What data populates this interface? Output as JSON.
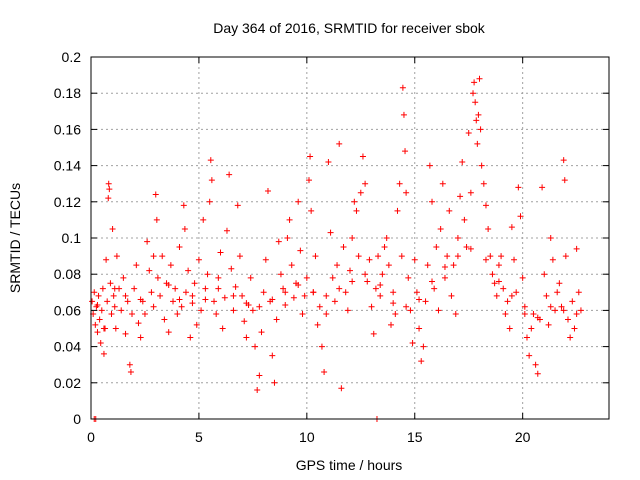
{
  "chart_data": {
    "type": "scatter",
    "title": "Day 364 of 2016, SRMTID for receiver sbok",
    "xlabel": "GPS time / hours",
    "ylabel": "SRMTID / TECUs",
    "xlim": [
      0,
      24
    ],
    "ylim": [
      0,
      0.2
    ],
    "x_ticks": [
      0,
      5,
      10,
      15,
      20
    ],
    "x_tick_labels": [
      "0",
      "5",
      "10",
      "15",
      "20"
    ],
    "y_ticks": [
      0,
      0.02,
      0.04,
      0.06,
      0.08,
      0.1,
      0.12,
      0.14,
      0.16,
      0.18,
      0.2
    ],
    "y_tick_labels": [
      "0",
      "0.02",
      "0.04",
      "0.06",
      "0.08",
      "0.1",
      "0.12",
      "0.14",
      "0.16",
      "0.18",
      "0.2"
    ],
    "grid": true,
    "marker": "+",
    "series_color": "#ff0000",
    "series": [
      {
        "name": "SRMTID",
        "points": [
          [
            0.05,
            0.065
          ],
          [
            0.1,
            0.058
          ],
          [
            0.15,
            0.07
          ],
          [
            0.2,
            0.052
          ],
          [
            0.25,
            0.062
          ],
          [
            0.3,
            0.048
          ],
          [
            0.35,
            0.068
          ],
          [
            0.4,
            0.055
          ],
          [
            0.45,
            0.042
          ],
          [
            0.5,
            0.06
          ],
          [
            0.55,
            0.072
          ],
          [
            0.6,
            0.036
          ],
          [
            0.65,
            0.05
          ],
          [
            0.7,
            0.088
          ],
          [
            0.75,
            0.065
          ],
          [
            0.8,
            0.122
          ],
          [
            0.82,
            0.13
          ],
          [
            0.85,
            0.127
          ],
          [
            0.9,
            0.075
          ],
          [
            0.95,
            0.058
          ],
          [
            1.0,
            0.105
          ],
          [
            1.05,
            0.068
          ],
          [
            1.1,
            0.062
          ],
          [
            1.15,
            0.05
          ],
          [
            1.2,
            0.09
          ],
          [
            1.3,
            0.072
          ],
          [
            1.4,
            0.06
          ],
          [
            1.5,
            0.078
          ],
          [
            1.6,
            0.047
          ],
          [
            1.7,
            0.065
          ],
          [
            1.8,
            0.03
          ],
          [
            1.85,
            0.026
          ],
          [
            1.9,
            0.058
          ],
          [
            2.0,
            0.072
          ],
          [
            2.1,
            0.085
          ],
          [
            2.2,
            0.053
          ],
          [
            2.3,
            0.045
          ],
          [
            2.4,
            0.065
          ],
          [
            2.5,
            0.058
          ],
          [
            2.6,
            0.098
          ],
          [
            2.7,
            0.082
          ],
          [
            2.8,
            0.07
          ],
          [
            2.9,
            0.09
          ],
          [
            3.0,
            0.124
          ],
          [
            3.05,
            0.11
          ],
          [
            3.1,
            0.078
          ],
          [
            3.2,
            0.068
          ],
          [
            3.3,
            0.09
          ],
          [
            3.4,
            0.055
          ],
          [
            3.5,
            0.075
          ],
          [
            3.6,
            0.048
          ],
          [
            3.7,
            0.085
          ],
          [
            3.8,
            0.065
          ],
          [
            3.9,
            0.072
          ],
          [
            4.0,
            0.058
          ],
          [
            4.1,
            0.095
          ],
          [
            4.2,
            0.062
          ],
          [
            4.3,
            0.118
          ],
          [
            4.35,
            0.105
          ],
          [
            4.4,
            0.07
          ],
          [
            4.5,
            0.082
          ],
          [
            4.6,
            0.045
          ],
          [
            4.7,
            0.068
          ],
          [
            4.8,
            0.075
          ],
          [
            4.9,
            0.052
          ],
          [
            5.0,
            0.088
          ],
          [
            5.1,
            0.06
          ],
          [
            5.2,
            0.11
          ],
          [
            5.3,
            0.072
          ],
          [
            5.4,
            0.08
          ],
          [
            5.5,
            0.12
          ],
          [
            5.55,
            0.143
          ],
          [
            5.6,
            0.132
          ],
          [
            5.7,
            0.065
          ],
          [
            5.8,
            0.058
          ],
          [
            5.9,
            0.078
          ],
          [
            6.0,
            0.092
          ],
          [
            6.1,
            0.05
          ],
          [
            6.2,
            0.067
          ],
          [
            6.3,
            0.104
          ],
          [
            6.4,
            0.135
          ],
          [
            6.5,
            0.083
          ],
          [
            6.6,
            0.06
          ],
          [
            6.7,
            0.073
          ],
          [
            6.8,
            0.118
          ],
          [
            6.9,
            0.09
          ],
          [
            7.0,
            0.068
          ],
          [
            7.1,
            0.054
          ],
          [
            7.2,
            0.045
          ],
          [
            7.3,
            0.063
          ],
          [
            7.4,
            0.078
          ],
          [
            7.5,
            0.06
          ],
          [
            7.6,
            0.04
          ],
          [
            7.7,
            0.016
          ],
          [
            7.8,
            0.024
          ],
          [
            7.9,
            0.048
          ],
          [
            8.0,
            0.07
          ],
          [
            8.1,
            0.088
          ],
          [
            8.2,
            0.126
          ],
          [
            8.3,
            0.065
          ],
          [
            8.4,
            0.035
          ],
          [
            8.5,
            0.02
          ],
          [
            8.6,
            0.055
          ],
          [
            8.7,
            0.098
          ],
          [
            8.8,
            0.08
          ],
          [
            8.9,
            0.072
          ],
          [
            9.0,
            0.063
          ],
          [
            9.1,
            0.1
          ],
          [
            9.2,
            0.11
          ],
          [
            9.3,
            0.085
          ],
          [
            9.4,
            0.067
          ],
          [
            9.5,
            0.075
          ],
          [
            9.6,
            0.12
          ],
          [
            9.7,
            0.093
          ],
          [
            9.8,
            0.058
          ],
          [
            9.9,
            0.068
          ],
          [
            10.0,
            0.078
          ],
          [
            10.1,
            0.132
          ],
          [
            10.15,
            0.145
          ],
          [
            10.2,
            0.115
          ],
          [
            10.3,
            0.07
          ],
          [
            10.4,
            0.09
          ],
          [
            10.5,
            0.052
          ],
          [
            10.6,
            0.062
          ],
          [
            10.7,
            0.04
          ],
          [
            10.8,
            0.026
          ],
          [
            10.9,
            0.058
          ],
          [
            11.0,
            0.142
          ],
          [
            11.1,
            0.103
          ],
          [
            11.2,
            0.078
          ],
          [
            11.3,
            0.065
          ],
          [
            11.4,
            0.085
          ],
          [
            11.5,
            0.152
          ],
          [
            11.6,
            0.017
          ],
          [
            11.7,
            0.095
          ],
          [
            11.8,
            0.07
          ],
          [
            11.9,
            0.06
          ],
          [
            12.0,
            0.082
          ],
          [
            12.1,
            0.1
          ],
          [
            12.2,
            0.12
          ],
          [
            12.3,
            0.115
          ],
          [
            12.4,
            0.09
          ],
          [
            12.5,
            0.125
          ],
          [
            12.6,
            0.145
          ],
          [
            12.7,
            0.13
          ],
          [
            12.8,
            0.076
          ],
          [
            12.9,
            0.088
          ],
          [
            13.0,
            0.062
          ],
          [
            13.1,
            0.047
          ],
          [
            13.2,
            0.072
          ],
          [
            13.3,
            0.09
          ],
          [
            13.4,
            0.068
          ],
          [
            13.5,
            0.08
          ],
          [
            13.6,
            0.095
          ],
          [
            13.7,
            0.1
          ],
          [
            13.8,
            0.085
          ],
          [
            13.9,
            0.052
          ],
          [
            14.0,
            0.07
          ],
          [
            14.1,
            0.058
          ],
          [
            14.2,
            0.115
          ],
          [
            14.3,
            0.13
          ],
          [
            14.4,
            0.09
          ],
          [
            14.45,
            0.183
          ],
          [
            14.5,
            0.168
          ],
          [
            14.55,
            0.148
          ],
          [
            14.6,
            0.125
          ],
          [
            14.7,
            0.078
          ],
          [
            14.8,
            0.06
          ],
          [
            14.9,
            0.042
          ],
          [
            15.0,
            0.088
          ],
          [
            15.1,
            0.07
          ],
          [
            15.2,
            0.05
          ],
          [
            15.3,
            0.032
          ],
          [
            15.4,
            0.04
          ],
          [
            15.5,
            0.065
          ],
          [
            15.6,
            0.085
          ],
          [
            15.7,
            0.14
          ],
          [
            15.8,
            0.12
          ],
          [
            15.9,
            0.072
          ],
          [
            16.0,
            0.095
          ],
          [
            16.1,
            0.06
          ],
          [
            16.2,
            0.105
          ],
          [
            16.3,
            0.13
          ],
          [
            16.4,
            0.078
          ],
          [
            16.5,
            0.09
          ],
          [
            16.6,
            0.115
          ],
          [
            16.7,
            0.068
          ],
          [
            16.8,
            0.085
          ],
          [
            16.9,
            0.058
          ],
          [
            17.0,
            0.1
          ],
          [
            17.1,
            0.123
          ],
          [
            17.2,
            0.142
          ],
          [
            17.3,
            0.11
          ],
          [
            17.4,
            0.095
          ],
          [
            17.5,
            0.158
          ],
          [
            17.6,
            0.125
          ],
          [
            17.7,
            0.18
          ],
          [
            17.75,
            0.186
          ],
          [
            17.8,
            0.175
          ],
          [
            17.85,
            0.165
          ],
          [
            17.9,
            0.152
          ],
          [
            17.95,
            0.168
          ],
          [
            18.0,
            0.188
          ],
          [
            18.05,
            0.16
          ],
          [
            18.1,
            0.14
          ],
          [
            18.2,
            0.13
          ],
          [
            18.3,
            0.118
          ],
          [
            18.4,
            0.105
          ],
          [
            18.5,
            0.09
          ],
          [
            18.6,
            0.08
          ],
          [
            18.7,
            0.075
          ],
          [
            18.8,
            0.068
          ],
          [
            18.9,
            0.085
          ],
          [
            19.0,
            0.09
          ],
          [
            19.1,
            0.072
          ],
          [
            19.2,
            0.058
          ],
          [
            19.3,
            0.065
          ],
          [
            19.4,
            0.05
          ],
          [
            19.5,
            0.106
          ],
          [
            19.6,
            0.088
          ],
          [
            19.7,
            0.07
          ],
          [
            19.8,
            0.128
          ],
          [
            19.9,
            0.112
          ],
          [
            20.0,
            0.078
          ],
          [
            20.1,
            0.062
          ],
          [
            20.2,
            0.045
          ],
          [
            20.3,
            0.035
          ],
          [
            20.4,
            0.05
          ],
          [
            20.5,
            0.058
          ],
          [
            20.6,
            0.03
          ],
          [
            20.7,
            0.025
          ],
          [
            20.8,
            0.055
          ],
          [
            20.9,
            0.128
          ],
          [
            21.0,
            0.08
          ],
          [
            21.1,
            0.068
          ],
          [
            21.2,
            0.052
          ],
          [
            21.3,
            0.1
          ],
          [
            21.4,
            0.088
          ],
          [
            21.5,
            0.06
          ],
          [
            21.6,
            0.07
          ],
          [
            21.7,
            0.075
          ],
          [
            21.8,
            0.062
          ],
          [
            21.9,
            0.143
          ],
          [
            21.95,
            0.132
          ],
          [
            22.0,
            0.09
          ],
          [
            22.1,
            0.055
          ],
          [
            22.2,
            0.045
          ],
          [
            22.3,
            0.065
          ],
          [
            22.4,
            0.05
          ],
          [
            22.5,
            0.094
          ],
          [
            22.6,
            0.07
          ],
          [
            22.7,
            0.06
          ],
          [
            0.3,
            0.063
          ],
          [
            0.6,
            0.05
          ],
          [
            1.1,
            0.072
          ],
          [
            1.6,
            0.068
          ],
          [
            2.3,
            0.066
          ],
          [
            2.9,
            0.062
          ],
          [
            3.6,
            0.074
          ],
          [
            4.1,
            0.066
          ],
          [
            4.7,
            0.064
          ],
          [
            5.3,
            0.066
          ],
          [
            5.9,
            0.072
          ],
          [
            6.6,
            0.068
          ],
          [
            7.2,
            0.064
          ],
          [
            7.8,
            0.062
          ],
          [
            8.4,
            0.066
          ],
          [
            9.0,
            0.07
          ],
          [
            9.6,
            0.074
          ],
          [
            10.3,
            0.07
          ],
          [
            10.9,
            0.068
          ],
          [
            11.5,
            0.072
          ],
          [
            12.1,
            0.076
          ],
          [
            12.7,
            0.08
          ],
          [
            13.4,
            0.074
          ],
          [
            14.0,
            0.064
          ],
          [
            14.6,
            0.062
          ],
          [
            15.2,
            0.066
          ],
          [
            15.8,
            0.076
          ],
          [
            16.4,
            0.084
          ],
          [
            17.0,
            0.09
          ],
          [
            17.6,
            0.094
          ],
          [
            18.3,
            0.088
          ],
          [
            18.9,
            0.076
          ],
          [
            19.5,
            0.068
          ],
          [
            20.1,
            0.058
          ],
          [
            20.7,
            0.056
          ],
          [
            21.3,
            0.062
          ],
          [
            21.9,
            0.06
          ],
          [
            22.5,
            0.058
          ],
          [
            0.15,
            0.0
          ],
          [
            0.22,
            0.0
          ],
          [
            13.25,
            0.0
          ]
        ]
      }
    ]
  }
}
